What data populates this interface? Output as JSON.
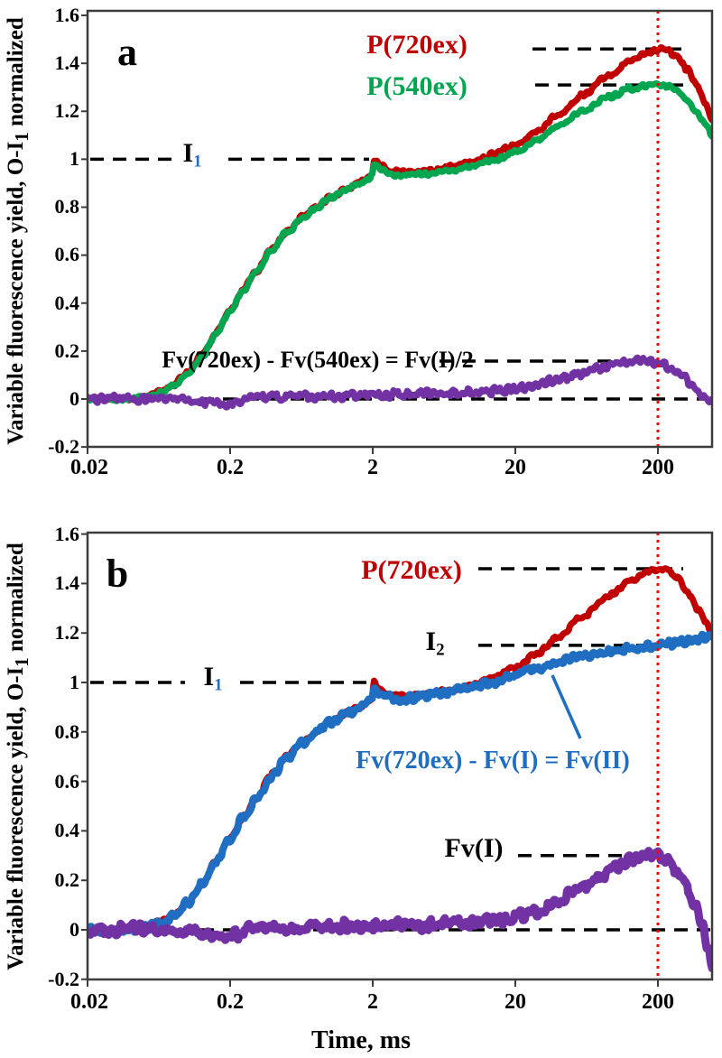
{
  "colors": {
    "red": "#c00000",
    "green": "#00a64f",
    "purple": "#7232a4",
    "blue": "#1f6ec2",
    "black": "#000000",
    "vline_red": "#ff0000",
    "axis": "#3c3c3c"
  },
  "figure": {
    "y_axis_title_main": "Variable fluorescence yield, O-I",
    "y_axis_title_sub": "1",
    "y_axis_title_tail": " normalized",
    "x_axis_title": "Time, ms",
    "y_ticks": [
      "1.6",
      "1.4",
      "1.2",
      "1",
      "0.8",
      "0.6",
      "0.4",
      "0.2",
      "0",
      "-0.2"
    ],
    "x_ticks": [
      "0.02",
      "0.2",
      "2",
      "20",
      "200"
    ]
  },
  "panel_a": {
    "letter": "a",
    "label_p720": "P(720ex)",
    "label_p540": "P(540ex)",
    "label_i1_base": "I",
    "label_i1_sub": "1",
    "label_formula": "Fv(720ex) - Fv(540ex) = Fv(I)/2"
  },
  "panel_b": {
    "letter": "b",
    "label_p720": "P(720ex)",
    "label_i1_base": "I",
    "label_i1_sub": "1",
    "label_i2_base": "I",
    "label_i2_sub": "2",
    "label_formula_blue": "Fv(720ex) - Fv(I) = Fv(II)",
    "label_fvi": "Fv(I)"
  },
  "chart_data": [
    {
      "panel": "a",
      "type": "line",
      "x_scale": "log",
      "x_range_ms": [
        0.02,
        480
      ],
      "y_range": [
        -0.2,
        1.6
      ],
      "x_ticks_ms": [
        0.02,
        0.2,
        2,
        20,
        200
      ],
      "y_tick_step": 0.2,
      "ylabel": "Variable fluorescence yield, O-I1 normalized",
      "annotations": {
        "i1_level": 1.0,
        "p720_peak_level": 1.46,
        "p540_peak_level": 1.31,
        "fv_half_peak_level": 0.158,
        "zero_level": 0,
        "vline_ms": 200
      },
      "series": [
        {
          "name": "P(720ex)",
          "color_key": "red",
          "width": 7,
          "noise": 0.007,
          "seed": 11,
          "points": [
            [
              0.02,
              0
            ],
            [
              0.035,
              0
            ],
            [
              0.05,
              0.01
            ],
            [
              0.065,
              0.03
            ],
            [
              0.08,
              0.06
            ],
            [
              0.1,
              0.11
            ],
            [
              0.13,
              0.19
            ],
            [
              0.16,
              0.28
            ],
            [
              0.2,
              0.37
            ],
            [
              0.25,
              0.46
            ],
            [
              0.3,
              0.53
            ],
            [
              0.4,
              0.63
            ],
            [
              0.5,
              0.7
            ],
            [
              0.65,
              0.76
            ],
            [
              0.8,
              0.8
            ],
            [
              1.0,
              0.84
            ],
            [
              1.3,
              0.875
            ],
            [
              1.6,
              0.9
            ],
            [
              1.9,
              0.925
            ],
            [
              1.98,
              0.94
            ],
            [
              2.05,
              1.0
            ],
            [
              2.12,
              0.99
            ],
            [
              2.3,
              0.97
            ],
            [
              2.6,
              0.952
            ],
            [
              3.2,
              0.945
            ],
            [
              4,
              0.948
            ],
            [
              5,
              0.953
            ],
            [
              7,
              0.968
            ],
            [
              10,
              0.99
            ],
            [
              14,
              1.02
            ],
            [
              20,
              1.06
            ],
            [
              28,
              1.115
            ],
            [
              40,
              1.185
            ],
            [
              60,
              1.27
            ],
            [
              90,
              1.35
            ],
            [
              130,
              1.41
            ],
            [
              170,
              1.447
            ],
            [
              200,
              1.458
            ],
            [
              230,
              1.455
            ],
            [
              270,
              1.43
            ],
            [
              320,
              1.375
            ],
            [
              380,
              1.3
            ],
            [
              430,
              1.235
            ],
            [
              480,
              1.17
            ]
          ]
        },
        {
          "name": "P(540ex)",
          "color_key": "green",
          "width": 7,
          "noise": 0.007,
          "seed": 22,
          "points": [
            [
              0.02,
              0
            ],
            [
              0.035,
              0
            ],
            [
              0.05,
              0.008
            ],
            [
              0.065,
              0.028
            ],
            [
              0.08,
              0.058
            ],
            [
              0.1,
              0.107
            ],
            [
              0.13,
              0.187
            ],
            [
              0.16,
              0.277
            ],
            [
              0.2,
              0.366
            ],
            [
              0.25,
              0.456
            ],
            [
              0.3,
              0.527
            ],
            [
              0.4,
              0.627
            ],
            [
              0.5,
              0.697
            ],
            [
              0.65,
              0.757
            ],
            [
              0.8,
              0.797
            ],
            [
              1.0,
              0.837
            ],
            [
              1.3,
              0.872
            ],
            [
              1.6,
              0.897
            ],
            [
              1.9,
              0.922
            ],
            [
              1.98,
              0.935
            ],
            [
              2.05,
              0.985
            ],
            [
              2.12,
              0.975
            ],
            [
              2.3,
              0.955
            ],
            [
              2.6,
              0.942
            ],
            [
              3.2,
              0.932
            ],
            [
              4,
              0.935
            ],
            [
              5,
              0.94
            ],
            [
              7,
              0.952
            ],
            [
              10,
              0.97
            ],
            [
              14,
              0.995
            ],
            [
              20,
              1.03
            ],
            [
              28,
              1.08
            ],
            [
              40,
              1.14
            ],
            [
              60,
              1.205
            ],
            [
              90,
              1.26
            ],
            [
              130,
              1.295
            ],
            [
              170,
              1.306
            ],
            [
              200,
              1.31
            ],
            [
              230,
              1.305
            ],
            [
              270,
              1.285
            ],
            [
              320,
              1.245
            ],
            [
              380,
              1.19
            ],
            [
              430,
              1.145
            ],
            [
              480,
              1.1
            ]
          ]
        },
        {
          "name": "Fv(720ex) - Fv(540ex) = Fv(I)/2",
          "color_key": "purple",
          "width": 7,
          "noise": 0.013,
          "seed": 33,
          "points": [
            [
              0.02,
              0.002
            ],
            [
              0.06,
              0
            ],
            [
              0.1,
              -0.004
            ],
            [
              0.14,
              -0.018
            ],
            [
              0.18,
              -0.02
            ],
            [
              0.22,
              -0.012
            ],
            [
              0.3,
              0.004
            ],
            [
              0.45,
              0.01
            ],
            [
              0.7,
              0.01
            ],
            [
              1,
              0.012
            ],
            [
              1.5,
              0.013
            ],
            [
              2,
              0.016
            ],
            [
              3,
              0.02
            ],
            [
              4.5,
              0.022
            ],
            [
              7,
              0.024
            ],
            [
              10,
              0.028
            ],
            [
              14,
              0.033
            ],
            [
              20,
              0.042
            ],
            [
              28,
              0.058
            ],
            [
              40,
              0.082
            ],
            [
              55,
              0.105
            ],
            [
              75,
              0.128
            ],
            [
              100,
              0.146
            ],
            [
              130,
              0.156
            ],
            [
              165,
              0.16
            ],
            [
              200,
              0.152
            ],
            [
              240,
              0.133
            ],
            [
              290,
              0.1
            ],
            [
              350,
              0.055
            ],
            [
              420,
              0.012
            ],
            [
              480,
              -0.012
            ]
          ]
        }
      ]
    },
    {
      "panel": "b",
      "type": "line",
      "x_scale": "log",
      "x_range_ms": [
        0.02,
        480
      ],
      "y_range": [
        -0.2,
        1.6
      ],
      "x_ticks_ms": [
        0.02,
        0.2,
        2,
        20,
        200
      ],
      "y_tick_step": 0.2,
      "xlabel": "Time, ms",
      "annotations": {
        "i1_level": 1.0,
        "i2_level": 1.15,
        "p720_peak_level": 1.46,
        "fvi_peak_level": 0.3,
        "zero_level": 0,
        "vline_ms": 200
      },
      "series": [
        {
          "name": "P(720ex)",
          "color_key": "red",
          "width": 7,
          "noise": 0.007,
          "seed": 44,
          "points": [
            [
              0.02,
              0
            ],
            [
              0.035,
              0
            ],
            [
              0.05,
              0.01
            ],
            [
              0.065,
              0.03
            ],
            [
              0.08,
              0.06
            ],
            [
              0.1,
              0.11
            ],
            [
              0.13,
              0.19
            ],
            [
              0.16,
              0.28
            ],
            [
              0.2,
              0.37
            ],
            [
              0.25,
              0.46
            ],
            [
              0.3,
              0.53
            ],
            [
              0.4,
              0.63
            ],
            [
              0.5,
              0.7
            ],
            [
              0.65,
              0.76
            ],
            [
              0.8,
              0.8
            ],
            [
              1.0,
              0.84
            ],
            [
              1.3,
              0.875
            ],
            [
              1.6,
              0.9
            ],
            [
              1.9,
              0.925
            ],
            [
              1.98,
              0.94
            ],
            [
              2.05,
              1.01
            ],
            [
              2.12,
              0.99
            ],
            [
              2.3,
              0.97
            ],
            [
              2.6,
              0.952
            ],
            [
              3.2,
              0.945
            ],
            [
              4,
              0.948
            ],
            [
              5,
              0.953
            ],
            [
              7,
              0.968
            ],
            [
              10,
              0.99
            ],
            [
              14,
              1.02
            ],
            [
              20,
              1.06
            ],
            [
              28,
              1.115
            ],
            [
              40,
              1.185
            ],
            [
              60,
              1.27
            ],
            [
              90,
              1.35
            ],
            [
              130,
              1.41
            ],
            [
              170,
              1.447
            ],
            [
              200,
              1.458
            ],
            [
              230,
              1.455
            ],
            [
              270,
              1.43
            ],
            [
              320,
              1.37
            ],
            [
              380,
              1.3
            ],
            [
              430,
              1.25
            ],
            [
              480,
              1.2
            ]
          ]
        },
        {
          "name": "Fv(720ex) - Fv(I) = Fv(II)",
          "color_key": "blue",
          "width": 8,
          "noise": 0.012,
          "seed": 55,
          "points": [
            [
              0.02,
              0
            ],
            [
              0.035,
              0
            ],
            [
              0.05,
              0.008
            ],
            [
              0.065,
              0.028
            ],
            [
              0.08,
              0.058
            ],
            [
              0.1,
              0.107
            ],
            [
              0.13,
              0.187
            ],
            [
              0.16,
              0.277
            ],
            [
              0.2,
              0.366
            ],
            [
              0.25,
              0.456
            ],
            [
              0.3,
              0.527
            ],
            [
              0.4,
              0.627
            ],
            [
              0.5,
              0.697
            ],
            [
              0.65,
              0.757
            ],
            [
              0.8,
              0.797
            ],
            [
              1.0,
              0.837
            ],
            [
              1.3,
              0.872
            ],
            [
              1.6,
              0.897
            ],
            [
              1.9,
              0.922
            ],
            [
              1.98,
              0.935
            ],
            [
              2.05,
              0.99
            ],
            [
              2.12,
              0.975
            ],
            [
              2.3,
              0.95
            ],
            [
              2.6,
              0.94
            ],
            [
              3.2,
              0.935
            ],
            [
              4,
              0.94
            ],
            [
              5,
              0.948
            ],
            [
              7,
              0.962
            ],
            [
              10,
              0.982
            ],
            [
              14,
              1.003
            ],
            [
              20,
              1.03
            ],
            [
              28,
              1.055
            ],
            [
              40,
              1.082
            ],
            [
              55,
              1.1
            ],
            [
              75,
              1.118
            ],
            [
              100,
              1.132
            ],
            [
              140,
              1.143
            ],
            [
              200,
              1.152
            ],
            [
              260,
              1.158
            ],
            [
              330,
              1.165
            ],
            [
              400,
              1.178
            ],
            [
              480,
              1.19
            ]
          ]
        },
        {
          "name": "Fv(I)",
          "color_key": "purple",
          "width": 9,
          "noise": 0.018,
          "seed": 66,
          "points": [
            [
              0.02,
              0.002
            ],
            [
              0.06,
              0.004
            ],
            [
              0.09,
              -0.002
            ],
            [
              0.13,
              -0.02
            ],
            [
              0.17,
              -0.028
            ],
            [
              0.22,
              -0.018
            ],
            [
              0.3,
              0.008
            ],
            [
              0.45,
              0.012
            ],
            [
              0.7,
              0.01
            ],
            [
              1,
              0.016
            ],
            [
              1.5,
              0.02
            ],
            [
              2,
              0.018
            ],
            [
              3,
              0.024
            ],
            [
              4.5,
              0.02
            ],
            [
              7,
              0.026
            ],
            [
              10,
              0.03
            ],
            [
              14,
              0.036
            ],
            [
              20,
              0.05
            ],
            [
              28,
              0.075
            ],
            [
              40,
              0.115
            ],
            [
              55,
              0.16
            ],
            [
              75,
              0.21
            ],
            [
              100,
              0.255
            ],
            [
              130,
              0.29
            ],
            [
              160,
              0.308
            ],
            [
              200,
              0.305
            ],
            [
              230,
              0.285
            ],
            [
              270,
              0.24
            ],
            [
              310,
              0.185
            ],
            [
              360,
              0.11
            ],
            [
              410,
              0.02
            ],
            [
              450,
              -0.07
            ],
            [
              480,
              -0.14
            ]
          ]
        }
      ]
    }
  ]
}
